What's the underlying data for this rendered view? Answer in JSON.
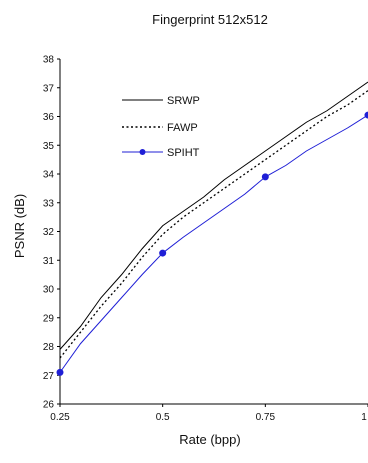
{
  "chart_data": {
    "type": "line",
    "title": "Fingerprint 512x512",
    "xlabel": "Rate (bpp)",
    "ylabel": "PSNR (dB)",
    "xlim": [
      0.25,
      1.0
    ],
    "ylim": [
      26,
      38
    ],
    "x_ticks": [
      "0.25",
      "0.5",
      "0.75",
      "1"
    ],
    "y_ticks": [
      "26",
      "27",
      "28",
      "29",
      "30",
      "31",
      "32",
      "33",
      "34",
      "35",
      "36",
      "37",
      "38"
    ],
    "grid": false,
    "legend_position": "upper-left",
    "series": [
      {
        "name": "SRWP",
        "color": "#000000",
        "line_style": "solid",
        "marker": "none",
        "x": [
          0.25,
          0.3,
          0.35,
          0.4,
          0.45,
          0.5,
          0.55,
          0.6,
          0.65,
          0.7,
          0.75,
          0.8,
          0.85,
          0.9,
          0.95,
          1.0
        ],
        "y": [
          27.9,
          28.7,
          29.7,
          30.5,
          31.4,
          32.2,
          32.7,
          33.2,
          33.8,
          34.3,
          34.8,
          35.3,
          35.8,
          36.2,
          36.7,
          37.2
        ]
      },
      {
        "name": "FAWP",
        "color": "#000000",
        "line_style": "dotted",
        "marker": "none",
        "x": [
          0.25,
          0.3,
          0.35,
          0.4,
          0.45,
          0.5,
          0.55,
          0.6,
          0.65,
          0.7,
          0.75,
          0.8,
          0.85,
          0.9,
          0.95,
          1.0
        ],
        "y": [
          27.6,
          28.5,
          29.4,
          30.2,
          31.1,
          31.9,
          32.5,
          33.0,
          33.5,
          34.0,
          34.5,
          35.0,
          35.5,
          36.0,
          36.4,
          36.9
        ]
      },
      {
        "name": "SPIHT",
        "color": "#1f1fd6",
        "line_style": "solid",
        "marker": "circle",
        "x": [
          0.25,
          0.3,
          0.35,
          0.4,
          0.45,
          0.5,
          0.55,
          0.6,
          0.65,
          0.7,
          0.75,
          0.8,
          0.85,
          0.9,
          0.95,
          1.0
        ],
        "y": [
          27.1,
          28.1,
          28.9,
          29.7,
          30.5,
          31.25,
          31.8,
          32.3,
          32.8,
          33.3,
          33.9,
          34.3,
          34.8,
          35.2,
          35.6,
          36.05
        ],
        "marker_x": [
          0.25,
          0.5,
          0.75,
          1.0
        ],
        "marker_y": [
          27.1,
          31.25,
          33.9,
          36.05
        ]
      }
    ]
  }
}
